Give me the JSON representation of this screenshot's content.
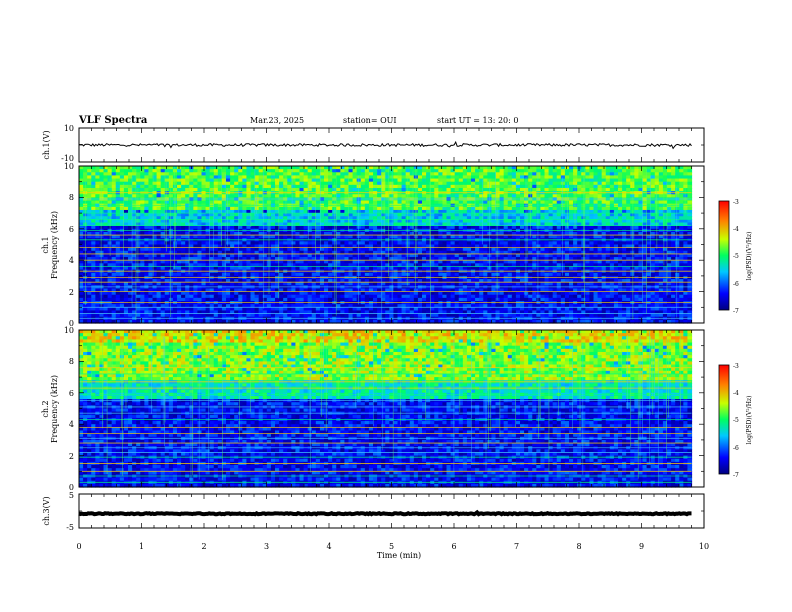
{
  "header": {
    "title": "VLF Spectra",
    "date": "Mar.23, 2025",
    "station": "station= OUI",
    "start": "start  UT  =   13: 20: 0"
  },
  "chart_data": [
    {
      "type": "line",
      "name": "ch1-waveform",
      "ylabel": "ch.1(V)",
      "ylim": [
        -10,
        10
      ],
      "yticks": [
        "10",
        "-10"
      ],
      "xlim": [
        0,
        10
      ],
      "series": [
        {
          "level": 0,
          "noise": 0.8
        }
      ]
    },
    {
      "type": "heatmap",
      "name": "ch1-spectrogram",
      "ylabel_top": "ch.1",
      "ylabel": "Frequency (kHz)",
      "ylim": [
        0,
        10
      ],
      "yticks": [
        "0",
        "2",
        "4",
        "6",
        "8",
        "10"
      ],
      "xlim": [
        0,
        10
      ],
      "data_extent_min": 9.8,
      "colorbar": {
        "label": "log(PSD)(V²/Hz)",
        "range": [
          -7,
          -3
        ],
        "ticks": [
          "-3",
          "-4",
          "-5",
          "-6",
          "-7"
        ]
      },
      "bands": [
        {
          "freq": [
            7.3,
            10
          ],
          "level": -4.8
        },
        {
          "freq": [
            6.3,
            7.3
          ],
          "level": -5.5
        },
        {
          "freq": [
            0,
            6.3
          ],
          "level": -6.4
        }
      ],
      "lines_khz": [
        0.3,
        0.6,
        1.0,
        1.3,
        2.0,
        2.3,
        2.6,
        2.9,
        3.3,
        3.6,
        4.0,
        4.4,
        4.8,
        5.3,
        5.6,
        5.9,
        6.2,
        6.6,
        7.0,
        7.5,
        7.9,
        8.3
      ]
    },
    {
      "type": "heatmap",
      "name": "ch2-spectrogram",
      "ylabel_top": "ch.2",
      "ylabel": "Frequency (kHz)",
      "ylim": [
        0,
        10
      ],
      "yticks": [
        "0",
        "2",
        "4",
        "6",
        "8",
        "10"
      ],
      "xlim": [
        0,
        10
      ],
      "data_extent_min": 9.8,
      "colorbar": {
        "label": "log(PSD)(V²/Hz)",
        "range": [
          -7,
          -3
        ],
        "ticks": [
          "-3",
          "-4",
          "-5",
          "-6",
          "-7"
        ]
      },
      "bands": [
        {
          "freq": [
            9.3,
            10
          ],
          "level": -4.2
        },
        {
          "freq": [
            6.8,
            9.3
          ],
          "level": -4.6
        },
        {
          "freq": [
            5.6,
            6.8
          ],
          "level": -5.3
        },
        {
          "freq": [
            0,
            5.6
          ],
          "level": -6.4
        }
      ],
      "lines_khz": [
        0.3,
        0.7,
        1.0,
        1.5,
        1.9,
        2.2,
        2.5,
        2.8,
        3.1,
        3.4,
        3.8,
        4.3,
        4.7,
        5.1,
        5.5,
        5.9,
        6.3,
        6.7,
        7.2,
        7.6
      ]
    },
    {
      "type": "line",
      "name": "ch3-waveform",
      "ylabel": "ch.3(V)",
      "ylim": [
        -5,
        5
      ],
      "yticks": [
        "5",
        "-5"
      ],
      "xlim": [
        0,
        10
      ],
      "series": [
        {
          "level": -0.8,
          "noise": 0.15
        }
      ]
    }
  ],
  "xaxis": {
    "label": "Time (min)",
    "ticks": [
      "0",
      "1",
      "2",
      "3",
      "4",
      "5",
      "6",
      "7",
      "8",
      "9",
      "10"
    ]
  }
}
